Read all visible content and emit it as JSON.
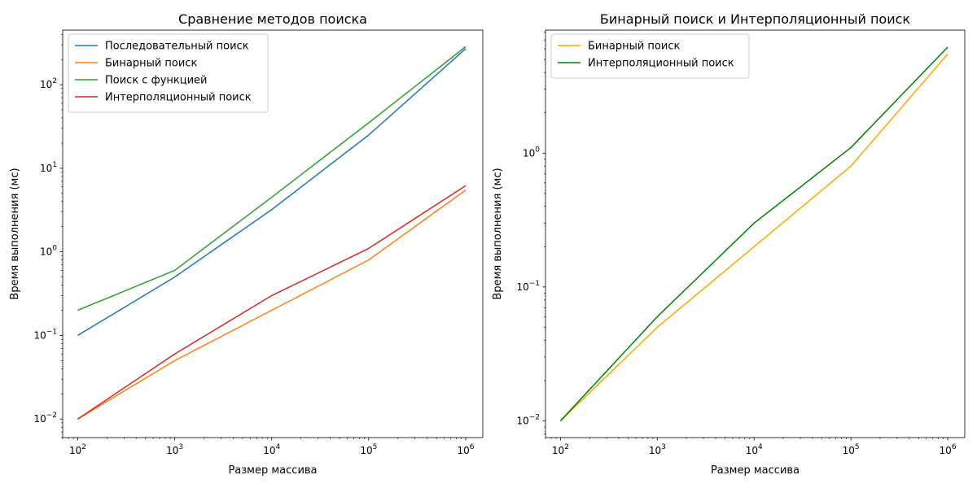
{
  "chart_data": [
    {
      "type": "line",
      "title": "Сравнение методов поиска",
      "xlabel": "Размер массива",
      "ylabel": "Время выполнения (мс)",
      "xscale": "log",
      "yscale": "log",
      "xlim": [
        70,
        1500000
      ],
      "ylim": [
        0.006,
        450
      ],
      "x": [
        100,
        1000,
        10000,
        100000,
        1000000
      ],
      "x_ticks": [
        100,
        1000,
        10000,
        100000,
        1000000
      ],
      "x_tick_labels": [
        {
          "base": "10",
          "exp": "2"
        },
        {
          "base": "10",
          "exp": "3"
        },
        {
          "base": "10",
          "exp": "4"
        },
        {
          "base": "10",
          "exp": "5"
        },
        {
          "base": "10",
          "exp": "6"
        }
      ],
      "y_ticks": [
        0.01,
        0.1,
        1,
        10,
        100
      ],
      "y_tick_labels": [
        {
          "base": "10",
          "exp": "−2"
        },
        {
          "base": "10",
          "exp": "−1"
        },
        {
          "base": "10",
          "exp": "0"
        },
        {
          "base": "10",
          "exp": "1"
        },
        {
          "base": "10",
          "exp": "2"
        }
      ],
      "grid": false,
      "legend_position": "upper-left",
      "series": [
        {
          "name": "Последовательный поиск",
          "color": "#1f77b4",
          "values": [
            0.1,
            0.5,
            3.2,
            25,
            270
          ]
        },
        {
          "name": "Бинарный поиск",
          "color": "#ff7f0e",
          "values": [
            0.01,
            0.05,
            0.2,
            0.8,
            5.5
          ]
        },
        {
          "name": "Поиск с функцией",
          "color": "#2ca02c",
          "values": [
            0.2,
            0.6,
            4.5,
            35,
            285
          ]
        },
        {
          "name": "Интерполяционный поиск",
          "color": "#d62728",
          "values": [
            0.01,
            0.06,
            0.3,
            1.1,
            6.2
          ]
        }
      ]
    },
    {
      "type": "line",
      "title": "Бинарный поиск и Интерполяционный поиск",
      "xlabel": "Размер массива",
      "ylabel": "Время выполнения (мс)",
      "xscale": "log",
      "yscale": "log",
      "xlim": [
        70,
        1500000
      ],
      "ylim": [
        0.0075,
        8.3
      ],
      "x": [
        100,
        1000,
        10000,
        100000,
        1000000
      ],
      "x_ticks": [
        100,
        1000,
        10000,
        100000,
        1000000
      ],
      "x_tick_labels": [
        {
          "base": "10",
          "exp": "2"
        },
        {
          "base": "10",
          "exp": "3"
        },
        {
          "base": "10",
          "exp": "4"
        },
        {
          "base": "10",
          "exp": "5"
        },
        {
          "base": "10",
          "exp": "6"
        }
      ],
      "y_ticks": [
        0.01,
        0.1,
        1
      ],
      "y_tick_labels": [
        {
          "base": "10",
          "exp": "−2"
        },
        {
          "base": "10",
          "exp": "−1"
        },
        {
          "base": "10",
          "exp": "0"
        }
      ],
      "grid": false,
      "legend_position": "upper-left",
      "series": [
        {
          "name": "Бинарный поиск",
          "color": "#ffa500",
          "values": [
            0.01,
            0.05,
            0.2,
            0.8,
            5.5
          ]
        },
        {
          "name": "Интерполяционный поиск",
          "color": "#008000",
          "values": [
            0.01,
            0.06,
            0.3,
            1.1,
            6.2
          ]
        }
      ]
    }
  ]
}
